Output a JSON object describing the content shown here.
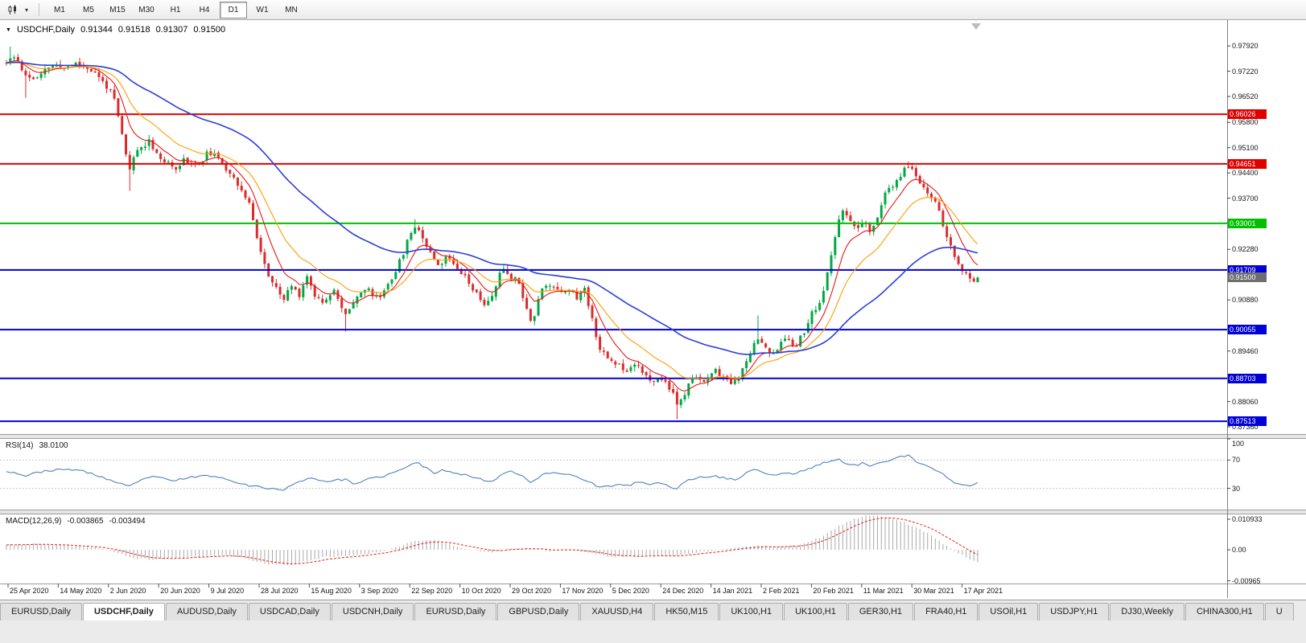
{
  "toolbar": {
    "timeframes": [
      "M1",
      "M5",
      "M15",
      "M30",
      "H1",
      "H4",
      "D1",
      "W1",
      "MN"
    ],
    "active_timeframe": "D1"
  },
  "chart": {
    "symbol": "USDCHF,Daily",
    "ohlc": {
      "open": "0.91344",
      "high": "0.91518",
      "low": "0.91307",
      "close": "0.91500"
    },
    "current_price": "0.91500",
    "current_price_color": "#6e6e6e",
    "y_ticks": [
      "0.97920",
      "0.97220",
      "0.96520",
      "0.95800",
      "0.95100",
      "0.94400",
      "0.93700",
      "0.92280",
      "0.90880",
      "0.89460",
      "0.88060",
      "0.87360"
    ],
    "x_ticks": [
      "25 Apr 2020",
      "14 May 2020",
      "2 Jun 2020",
      "20 Jun 2020",
      "9 Jul 2020",
      "28 Jul 2020",
      "15 Aug 2020",
      "3 Sep 2020",
      "22 Sep 2020",
      "10 Oct 2020",
      "29 Oct 2020",
      "17 Nov 2020",
      "5 Dec 2020",
      "24 Dec 2020",
      "14 Jan 2021",
      "2 Feb 2021",
      "20 Feb 2021",
      "11 Mar 2021",
      "30 Mar 2021",
      "17 Apr 2021"
    ],
    "h_lines": [
      {
        "value": "0.96026",
        "color": "#e00000"
      },
      {
        "value": "0.94651",
        "color": "#e00000"
      },
      {
        "value": "0.93001",
        "color": "#00c000"
      },
      {
        "value": "0.91709",
        "color": "#0000d8"
      },
      {
        "value": "0.90055",
        "color": "#0000d8"
      },
      {
        "value": "0.88703",
        "color": "#0000d8"
      },
      {
        "value": "0.87513",
        "color": "#0000d8"
      }
    ]
  },
  "indicators": {
    "rsi": {
      "label": "RSI(14)",
      "value": "38.0100",
      "axis_labels": [
        "100",
        "70",
        "30"
      ],
      "line_color": "#4f81bd"
    },
    "macd": {
      "label": "MACD(12,26,9)",
      "value_main": "-0.003865",
      "value_signal": "-0.003494",
      "axis_labels": [
        "0.010933",
        "0.00",
        "-0.00965"
      ]
    }
  },
  "chart_data": {
    "type": "candlestick",
    "symbol": "USDCHF",
    "timeframe": "Daily",
    "x_range": [
      "25 Apr 2020",
      "17 Apr 2021"
    ],
    "y_range": [
      0.8716,
      0.9857
    ],
    "up_color": "#00a843",
    "down_color": "#dc2b2b",
    "ma": [
      {
        "period": 8,
        "color": "#e81717"
      },
      {
        "period": 18,
        "color": "#ff9d00"
      },
      {
        "period": 55,
        "color": "#2b3fd6"
      }
    ],
    "price_path": [
      [
        0.0,
        0.9745
      ],
      [
        0.01,
        0.9762
      ],
      [
        0.02,
        0.9708
      ],
      [
        0.032,
        0.97
      ],
      [
        0.045,
        0.9738
      ],
      [
        0.06,
        0.9732
      ],
      [
        0.07,
        0.9745
      ],
      [
        0.085,
        0.973
      ],
      [
        0.097,
        0.97
      ],
      [
        0.109,
        0.9662
      ],
      [
        0.118,
        0.956
      ],
      [
        0.126,
        0.9445
      ],
      [
        0.134,
        0.95
      ],
      [
        0.147,
        0.953
      ],
      [
        0.159,
        0.9478
      ],
      [
        0.172,
        0.9452
      ],
      [
        0.184,
        0.9478
      ],
      [
        0.196,
        0.9458
      ],
      [
        0.209,
        0.95
      ],
      [
        0.222,
        0.9465
      ],
      [
        0.234,
        0.9432
      ],
      [
        0.242,
        0.939
      ],
      [
        0.252,
        0.934
      ],
      [
        0.26,
        0.924
      ],
      [
        0.268,
        0.9165
      ],
      [
        0.277,
        0.912
      ],
      [
        0.285,
        0.9085
      ],
      [
        0.293,
        0.913
      ],
      [
        0.301,
        0.91
      ],
      [
        0.309,
        0.9155
      ],
      [
        0.317,
        0.9105
      ],
      [
        0.325,
        0.9082
      ],
      [
        0.337,
        0.912
      ],
      [
        0.348,
        0.904
      ],
      [
        0.358,
        0.9092
      ],
      [
        0.37,
        0.912
      ],
      [
        0.383,
        0.909
      ],
      [
        0.392,
        0.913
      ],
      [
        0.403,
        0.918
      ],
      [
        0.416,
        0.9272
      ],
      [
        0.422,
        0.9302
      ],
      [
        0.429,
        0.9255
      ],
      [
        0.438,
        0.9218
      ],
      [
        0.446,
        0.9182
      ],
      [
        0.454,
        0.921
      ],
      [
        0.462,
        0.9188
      ],
      [
        0.47,
        0.9162
      ],
      [
        0.478,
        0.913
      ],
      [
        0.487,
        0.9092
      ],
      [
        0.495,
        0.9072
      ],
      [
        0.503,
        0.9122
      ],
      [
        0.511,
        0.9178
      ],
      [
        0.52,
        0.915
      ],
      [
        0.528,
        0.914
      ],
      [
        0.536,
        0.9058
      ],
      [
        0.542,
        0.9025
      ],
      [
        0.55,
        0.9118
      ],
      [
        0.562,
        0.913
      ],
      [
        0.573,
        0.9112
      ],
      [
        0.58,
        0.912
      ],
      [
        0.587,
        0.9092
      ],
      [
        0.595,
        0.912
      ],
      [
        0.602,
        0.9048
      ],
      [
        0.611,
        0.8952
      ],
      [
        0.62,
        0.8922
      ],
      [
        0.63,
        0.891
      ],
      [
        0.64,
        0.8892
      ],
      [
        0.648,
        0.892
      ],
      [
        0.657,
        0.888
      ],
      [
        0.665,
        0.8852
      ],
      [
        0.673,
        0.8872
      ],
      [
        0.681,
        0.8855
      ],
      [
        0.692,
        0.8792
      ],
      [
        0.702,
        0.8848
      ],
      [
        0.71,
        0.888
      ],
      [
        0.718,
        0.8862
      ],
      [
        0.731,
        0.889
      ],
      [
        0.739,
        0.8872
      ],
      [
        0.747,
        0.8852
      ],
      [
        0.756,
        0.888
      ],
      [
        0.764,
        0.8922
      ],
      [
        0.772,
        0.8992
      ],
      [
        0.779,
        0.8962
      ],
      [
        0.787,
        0.8938
      ],
      [
        0.796,
        0.8962
      ],
      [
        0.804,
        0.8982
      ],
      [
        0.812,
        0.8962
      ],
      [
        0.82,
        0.8992
      ],
      [
        0.83,
        0.9052
      ],
      [
        0.839,
        0.9085
      ],
      [
        0.847,
        0.918
      ],
      [
        0.855,
        0.9282
      ],
      [
        0.862,
        0.9352
      ],
      [
        0.868,
        0.9302
      ],
      [
        0.874,
        0.9282
      ],
      [
        0.882,
        0.9302
      ],
      [
        0.889,
        0.9272
      ],
      [
        0.897,
        0.9322
      ],
      [
        0.905,
        0.9382
      ],
      [
        0.913,
        0.9402
      ],
      [
        0.921,
        0.9432
      ],
      [
        0.928,
        0.9465
      ],
      [
        0.936,
        0.9432
      ],
      [
        0.944,
        0.9402
      ],
      [
        0.953,
        0.9372
      ],
      [
        0.961,
        0.9332
      ],
      [
        0.969,
        0.9252
      ],
      [
        0.977,
        0.9202
      ],
      [
        0.984,
        0.9168
      ],
      [
        0.992,
        0.9142
      ],
      [
        1.0,
        0.915
      ]
    ],
    "wick_marks": [
      {
        "f": 0.004,
        "high": 0.979
      },
      {
        "f": 0.018,
        "low": 0.9648
      },
      {
        "f": 0.126,
        "low": 0.939
      },
      {
        "f": 0.348,
        "low": 0.9
      },
      {
        "f": 0.422,
        "high": 0.9312
      },
      {
        "f": 0.692,
        "low": 0.8757
      },
      {
        "f": 0.772,
        "high": 0.9045
      },
      {
        "f": 0.928,
        "high": 0.9472
      }
    ],
    "rsi_path": [
      [
        0.0,
        55
      ],
      [
        0.02,
        48
      ],
      [
        0.04,
        55
      ],
      [
        0.07,
        57
      ],
      [
        0.09,
        50
      ],
      [
        0.11,
        40
      ],
      [
        0.126,
        32
      ],
      [
        0.14,
        42
      ],
      [
        0.15,
        48
      ],
      [
        0.17,
        40
      ],
      [
        0.19,
        46
      ],
      [
        0.21,
        48
      ],
      [
        0.23,
        42
      ],
      [
        0.25,
        34
      ],
      [
        0.27,
        30
      ],
      [
        0.285,
        28
      ],
      [
        0.3,
        38
      ],
      [
        0.31,
        45
      ],
      [
        0.33,
        40
      ],
      [
        0.35,
        43
      ],
      [
        0.36,
        35
      ],
      [
        0.37,
        42
      ],
      [
        0.39,
        48
      ],
      [
        0.41,
        58
      ],
      [
        0.422,
        68
      ],
      [
        0.43,
        60
      ],
      [
        0.44,
        52
      ],
      [
        0.45,
        56
      ],
      [
        0.47,
        50
      ],
      [
        0.49,
        42
      ],
      [
        0.5,
        40
      ],
      [
        0.51,
        50
      ],
      [
        0.52,
        55
      ],
      [
        0.53,
        49
      ],
      [
        0.54,
        38
      ],
      [
        0.55,
        48
      ],
      [
        0.56,
        52
      ],
      [
        0.58,
        50
      ],
      [
        0.59,
        45
      ],
      [
        0.6,
        40
      ],
      [
        0.61,
        31
      ],
      [
        0.63,
        35
      ],
      [
        0.64,
        33
      ],
      [
        0.65,
        40
      ],
      [
        0.66,
        35
      ],
      [
        0.67,
        38
      ],
      [
        0.69,
        30
      ],
      [
        0.7,
        40
      ],
      [
        0.71,
        45
      ],
      [
        0.73,
        48
      ],
      [
        0.74,
        44
      ],
      [
        0.75,
        42
      ],
      [
        0.76,
        50
      ],
      [
        0.77,
        58
      ],
      [
        0.78,
        52
      ],
      [
        0.79,
        48
      ],
      [
        0.8,
        52
      ],
      [
        0.81,
        50
      ],
      [
        0.82,
        55
      ],
      [
        0.83,
        60
      ],
      [
        0.84,
        65
      ],
      [
        0.855,
        72
      ],
      [
        0.865,
        64
      ],
      [
        0.875,
        62
      ],
      [
        0.882,
        66
      ],
      [
        0.89,
        62
      ],
      [
        0.9,
        68
      ],
      [
        0.91,
        70
      ],
      [
        0.92,
        74
      ],
      [
        0.928,
        77
      ],
      [
        0.936,
        68
      ],
      [
        0.944,
        63
      ],
      [
        0.953,
        58
      ],
      [
        0.961,
        54
      ],
      [
        0.969,
        44
      ],
      [
        0.977,
        38
      ],
      [
        0.984,
        35
      ],
      [
        0.992,
        34
      ],
      [
        1.0,
        38
      ]
    ],
    "macd_path": [
      [
        0.0,
        0.0015
      ],
      [
        0.03,
        0.0018
      ],
      [
        0.06,
        0.0012
      ],
      [
        0.09,
        0.0008
      ],
      [
        0.11,
        -0.0006
      ],
      [
        0.13,
        -0.0026
      ],
      [
        0.15,
        -0.0031
      ],
      [
        0.17,
        -0.0027
      ],
      [
        0.2,
        -0.002
      ],
      [
        0.23,
        -0.0018
      ],
      [
        0.25,
        -0.003
      ],
      [
        0.27,
        -0.0046
      ],
      [
        0.29,
        -0.0048
      ],
      [
        0.31,
        -0.0034
      ],
      [
        0.33,
        -0.0021
      ],
      [
        0.35,
        -0.0018
      ],
      [
        0.37,
        -0.0014
      ],
      [
        0.4,
        0.0006
      ],
      [
        0.42,
        0.0028
      ],
      [
        0.44,
        0.003
      ],
      [
        0.46,
        0.0014
      ],
      [
        0.48,
        0.0
      ],
      [
        0.5,
        -0.0008
      ],
      [
        0.52,
        0.0006
      ],
      [
        0.54,
        0.0005
      ],
      [
        0.56,
        -0.0005
      ],
      [
        0.58,
        0.0001
      ],
      [
        0.6,
        -0.001
      ],
      [
        0.62,
        -0.0021
      ],
      [
        0.64,
        -0.0023
      ],
      [
        0.66,
        -0.0018
      ],
      [
        0.68,
        -0.0021
      ],
      [
        0.7,
        -0.0014
      ],
      [
        0.72,
        -0.0005
      ],
      [
        0.74,
        0.0001
      ],
      [
        0.76,
        0.001
      ],
      [
        0.78,
        0.0013
      ],
      [
        0.8,
        0.0008
      ],
      [
        0.82,
        0.0016
      ],
      [
        0.84,
        0.0042
      ],
      [
        0.86,
        0.0078
      ],
      [
        0.875,
        0.0098
      ],
      [
        0.89,
        0.0109
      ],
      [
        0.905,
        0.0103
      ],
      [
        0.92,
        0.009
      ],
      [
        0.935,
        0.0072
      ],
      [
        0.95,
        0.005
      ],
      [
        0.965,
        0.0018
      ],
      [
        0.98,
        -0.0012
      ],
      [
        1.0,
        -0.0039
      ]
    ]
  },
  "tabs": {
    "items": [
      "EURUSD,Daily",
      "USDCHF,Daily",
      "AUDUSD,Daily",
      "USDCAD,Daily",
      "USDCNH,Daily",
      "EURUSD,Daily",
      "GBPUSD,Daily",
      "XAUUSD,H4",
      "HK50,M15",
      "UK100,H1",
      "UK100,H1",
      "GER30,H1",
      "FRA40,H1",
      "USOil,H1",
      "USDJPY,H1",
      "DJ30,Weekly",
      "CHINA300,H1",
      "U"
    ],
    "active_index": 1
  }
}
